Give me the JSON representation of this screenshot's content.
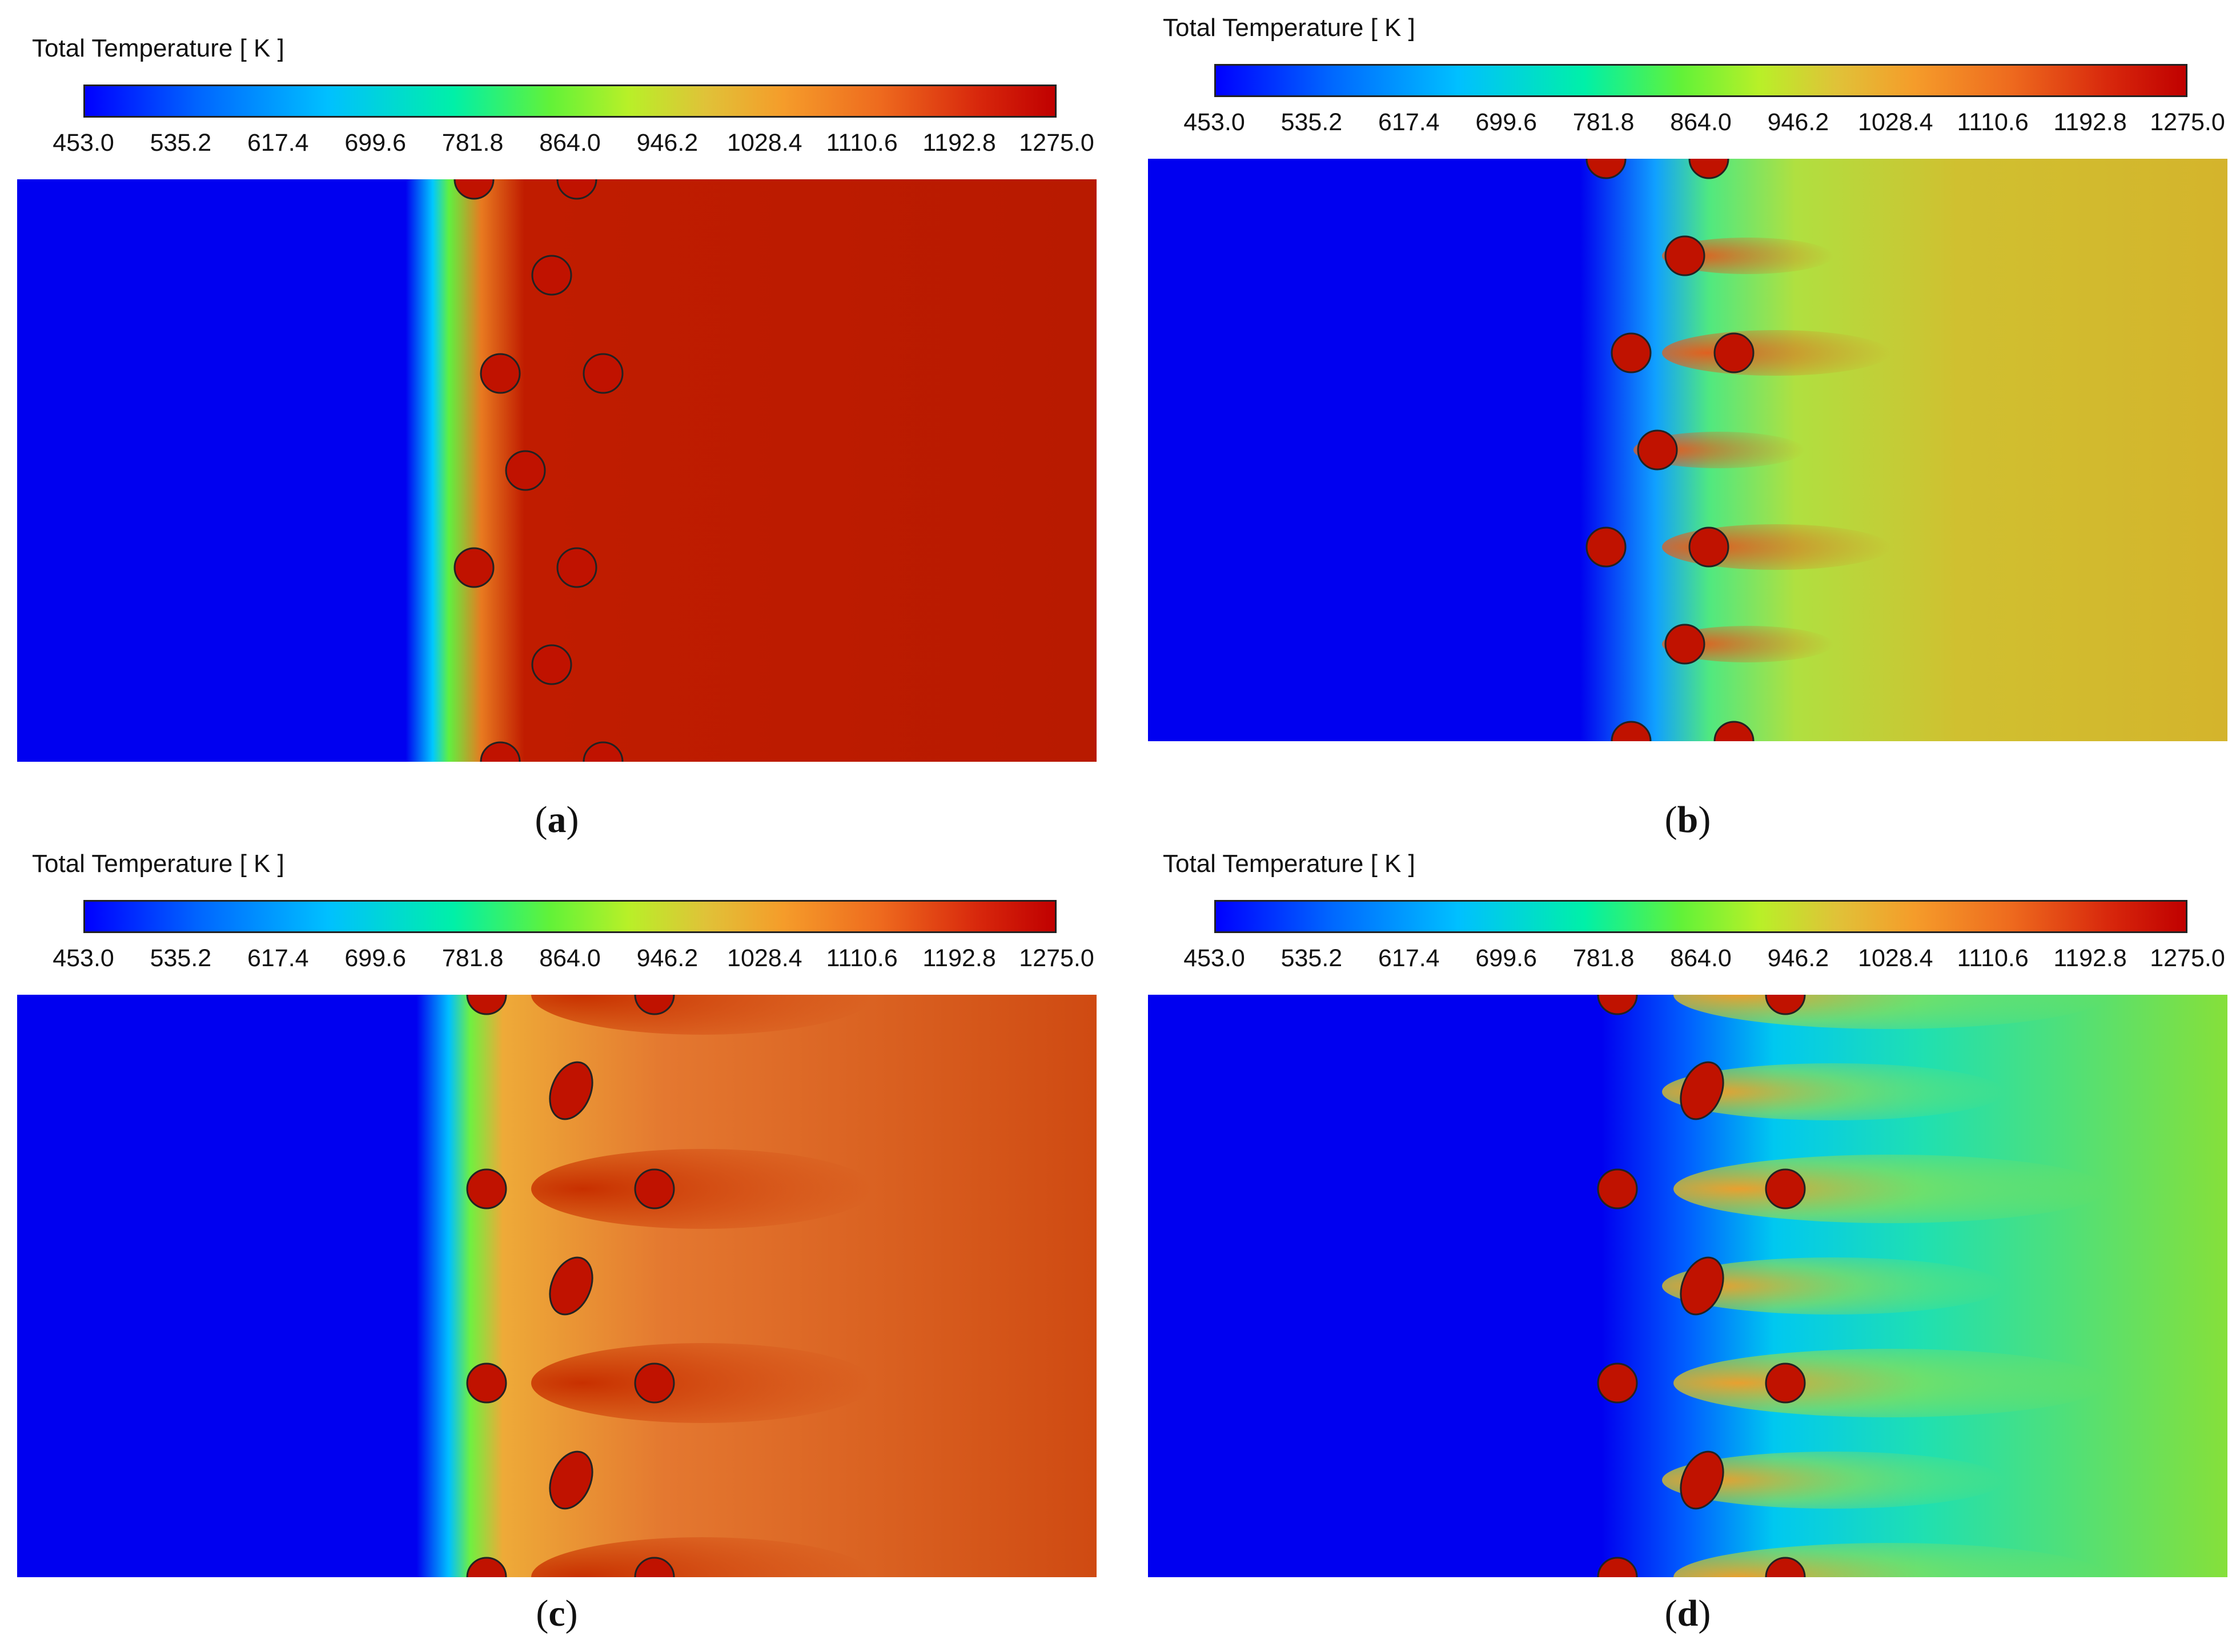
{
  "colorbar": {
    "title": "Total Temperature [ K ]",
    "ticks": [
      "453.0",
      "535.2",
      "617.4",
      "699.6",
      "781.8",
      "864.0",
      "946.2",
      "1028.4",
      "1110.6",
      "1192.8",
      "1275.0"
    ],
    "min": 453.0,
    "max": 1275.0,
    "colors": [
      "#0000ff",
      "#00c0ff",
      "#00f0a8",
      "#b8f028",
      "#f59c2a",
      "#d8280c",
      "#c00000"
    ]
  },
  "panels": [
    {
      "id": "a",
      "caption": "a",
      "background_color": "#b81a00",
      "cold_color": "#0000f0"
    },
    {
      "id": "b",
      "caption": "b",
      "background_color": "#d4b42c",
      "cold_color": "#0000f0"
    },
    {
      "id": "c",
      "caption": "c",
      "background_color": "#cf4a12",
      "cold_color": "#0000f0"
    },
    {
      "id": "d",
      "caption": "d",
      "background_color": "#86e03a",
      "cold_color": "#0000f0"
    }
  ]
}
